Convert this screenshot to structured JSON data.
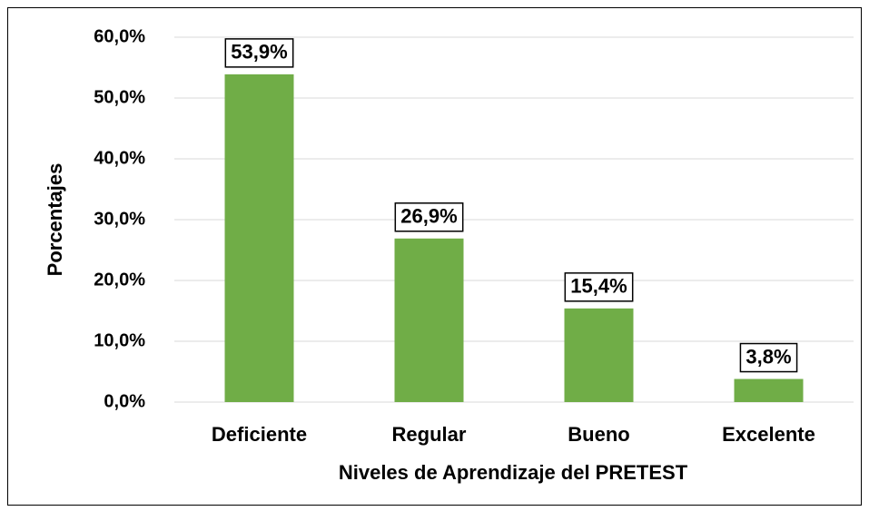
{
  "chart_data": {
    "type": "bar",
    "categories": [
      "Deficiente",
      "Regular",
      "Bueno",
      "Excelente"
    ],
    "values": [
      53.9,
      26.9,
      15.4,
      3.8
    ],
    "value_labels": [
      "53,9%",
      "26,9%",
      "15,4%",
      "3,8%"
    ],
    "color": "#70ad47",
    "x_label": "Niveles de Aprendizaje del PRETEST",
    "y_label": "Porcentajes",
    "ylim": [
      0,
      60
    ],
    "yticks": [
      {
        "value": 0,
        "label": "0,0%"
      },
      {
        "value": 10,
        "label": "10,0%"
      },
      {
        "value": 20,
        "label": "20,0%"
      },
      {
        "value": 30,
        "label": "30,0%"
      },
      {
        "value": 40,
        "label": "40,0%"
      },
      {
        "value": 50,
        "label": "50,0%"
      },
      {
        "value": 60,
        "label": "60,0%"
      }
    ],
    "grid": true
  }
}
